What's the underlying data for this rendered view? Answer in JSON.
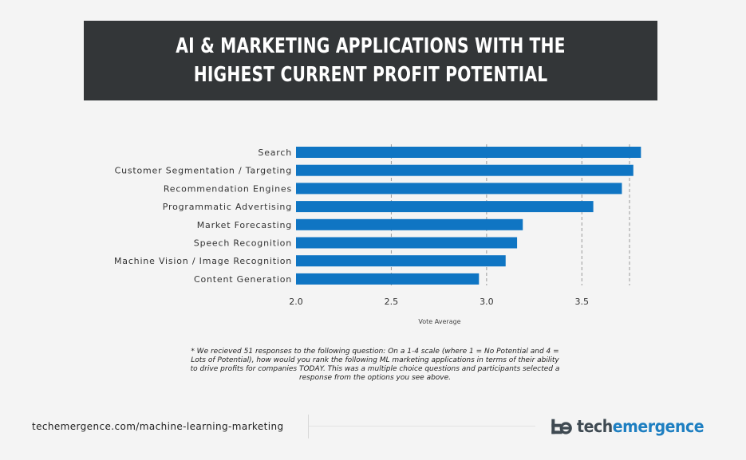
{
  "header": {
    "title": "AI & Marketing Applications with the Highest Current Profit Potential"
  },
  "chart_data": {
    "type": "bar",
    "orientation": "horizontal",
    "categories": [
      "Search",
      "Customer Segmentation / Targeting",
      "Recommendation Engines",
      "Programmatic Advertising",
      "Market Forecasting",
      "Speech Recognition",
      "Machine Vision / Image Recognition",
      "Content Generation"
    ],
    "values": [
      3.81,
      3.77,
      3.71,
      3.56,
      3.19,
      3.16,
      3.1,
      2.96
    ],
    "xlabel": "Vote Average",
    "ylabel": "",
    "xlim": [
      2.0,
      3.75
    ],
    "xticks": [
      "2.0",
      "2.5",
      "3.0",
      "3.5"
    ],
    "grid": "dashed vertical",
    "bar_color": "#0f75c3"
  },
  "footnote": "* We recieved 51 responses to the following question: On a 1-4 scale (where 1 = No Potential and 4 = Lots of Potential), how would you rank the following ML marketing applications in terms of their ability to drive profits for companies TODAY. This was a multiple choice questions and participants selected a response from the options you see above.",
  "footer": {
    "url": "techemergence.com/machine-learning-marketing",
    "logo_text_dark": "tech",
    "logo_text_blue": "emergence",
    "logo_icon": "te-monogram-icon"
  }
}
